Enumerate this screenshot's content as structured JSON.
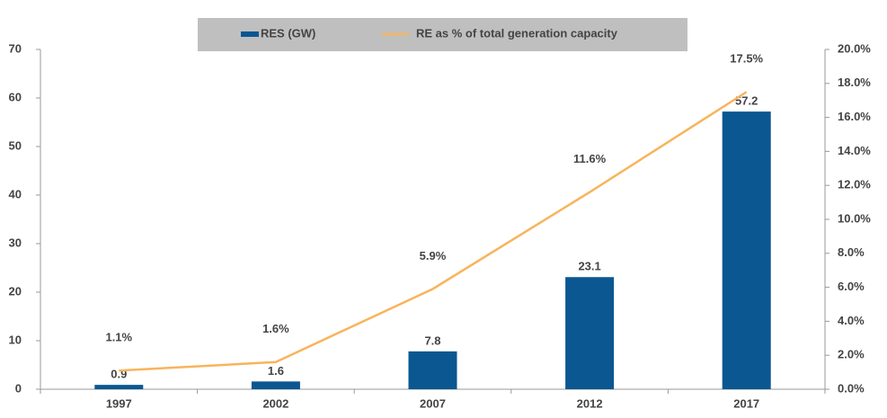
{
  "chart_data": {
    "type": "bar_line",
    "categories": [
      "1997",
      "2002",
      "2007",
      "2012",
      "2017"
    ],
    "series": [
      {
        "name": "RES (GW)",
        "type": "bar",
        "color": "#0b5791",
        "values": [
          0.9,
          1.6,
          7.8,
          23.1,
          57.2
        ]
      },
      {
        "name": "RE as % of total generation capacity",
        "type": "line",
        "axis": "y2",
        "color": "#f8b45c",
        "values": [
          1.1,
          1.6,
          5.9,
          11.6,
          17.5
        ],
        "value_labels": [
          "1.1%",
          "1.6%",
          "5.9%",
          "11.6%",
          "17.5%"
        ]
      }
    ],
    "ylim": [
      0,
      70
    ],
    "yticks": [
      0,
      10,
      20,
      30,
      40,
      50,
      60,
      70
    ],
    "y2lim": [
      0,
      20
    ],
    "y2ticks": [
      {
        "value": 0,
        "label": "0.0%"
      },
      {
        "value": 2,
        "label": "2.0%"
      },
      {
        "value": 4,
        "label": "4.0%"
      },
      {
        "value": 6,
        "label": "6.0%"
      },
      {
        "value": 8,
        "label": "8.0%"
      },
      {
        "value": 10,
        "label": "10.0%"
      },
      {
        "value": 12,
        "label": "12.0%"
      },
      {
        "value": 14,
        "label": "14.0%"
      },
      {
        "value": 16,
        "label": "16.0%"
      },
      {
        "value": 18,
        "label": "18.0%"
      },
      {
        "value": 20,
        "label": "20.0%"
      }
    ],
    "legend": "top"
  }
}
